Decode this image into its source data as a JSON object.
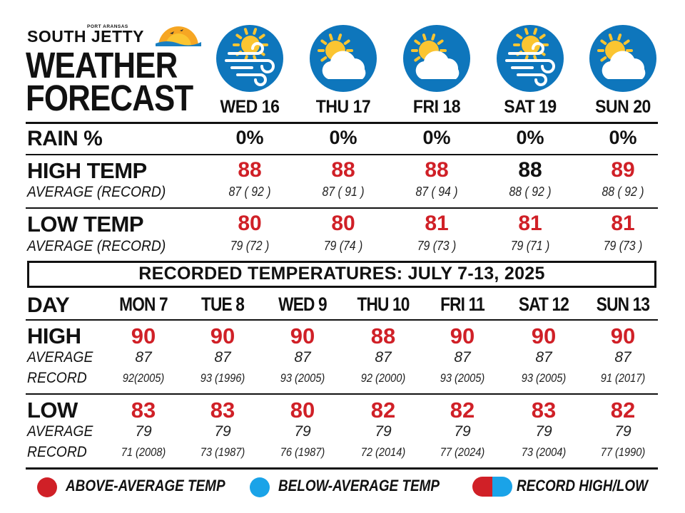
{
  "colors": {
    "above_average": "#d02027",
    "below_average": "#1aa3e8",
    "icon_background": "#0e76bc",
    "sun": "#fbc531",
    "cloud": "#ffffff"
  },
  "masthead": {
    "kicker": "PORT ARANSAS",
    "brand": "SOUTH JETTY",
    "title_line1": "WEATHER",
    "title_line2": "FORECAST"
  },
  "forecast": {
    "days": [
      {
        "label": "WED 16",
        "icon": "sun-wind-icon",
        "rain": "0%",
        "high": "88",
        "high_color": "red",
        "high_avg_rec": "87 ( 92 )",
        "low": "80",
        "low_color": "red",
        "low_avg_rec": "79 (72 )"
      },
      {
        "label": "THU 17",
        "icon": "partly-cloudy-icon",
        "rain": "0%",
        "high": "88",
        "high_color": "red",
        "high_avg_rec": "87 ( 91 )",
        "low": "80",
        "low_color": "red",
        "low_avg_rec": "79 (74 )"
      },
      {
        "label": "FRI 18",
        "icon": "partly-cloudy-icon",
        "rain": "0%",
        "high": "88",
        "high_color": "red",
        "high_avg_rec": "87 ( 94 )",
        "low": "81",
        "low_color": "red",
        "low_avg_rec": "79 (73 )"
      },
      {
        "label": "SAT 19",
        "icon": "sun-wind-icon",
        "rain": "0%",
        "high": "88",
        "high_color": "black",
        "high_avg_rec": "88 ( 92 )",
        "low": "81",
        "low_color": "red",
        "low_avg_rec": "79 (71 )"
      },
      {
        "label": "SUN 20",
        "icon": "partly-cloudy-icon",
        "rain": "0%",
        "high": "89",
        "high_color": "red",
        "high_avg_rec": "88 ( 92 )",
        "low": "81",
        "low_color": "red",
        "low_avg_rec": "79 (73 )"
      }
    ],
    "labels": {
      "rain": "RAIN %",
      "high": "HIGH TEMP",
      "low": "LOW TEMP",
      "avg_record": "AVERAGE (RECORD)"
    }
  },
  "recorded": {
    "title": "RECORDED TEMPERATURES: JULY 7-13, 2025",
    "labels": {
      "day": "DAY",
      "high": "HIGH",
      "low": "LOW",
      "average": "AVERAGE",
      "record": "RECORD"
    },
    "days": [
      {
        "label": "MON 7",
        "high": "90",
        "high_avg": "87",
        "high_rec": "92(2005)",
        "low": "83",
        "low_avg": "79",
        "low_rec": "71 (2008)"
      },
      {
        "label": "TUE 8",
        "high": "90",
        "high_avg": "87",
        "high_rec": "93 (1996)",
        "low": "83",
        "low_avg": "79",
        "low_rec": "73 (1987)"
      },
      {
        "label": "WED 9",
        "high": "90",
        "high_avg": "87",
        "high_rec": "93 (2005)",
        "low": "80",
        "low_avg": "79",
        "low_rec": "76 (1987)"
      },
      {
        "label": "THU 10",
        "high": "88",
        "high_avg": "87",
        "high_rec": "92 (2000)",
        "low": "82",
        "low_avg": "79",
        "low_rec": "72 (2014)"
      },
      {
        "label": "FRI 11",
        "high": "90",
        "high_avg": "87",
        "high_rec": "93 (2005)",
        "low": "82",
        "low_avg": "79",
        "low_rec": "77 (2024)"
      },
      {
        "label": "SAT 12",
        "high": "90",
        "high_avg": "87",
        "high_rec": "93 (2005)",
        "low": "83",
        "low_avg": "79",
        "low_rec": "73 (2004)"
      },
      {
        "label": "SUN 13",
        "high": "90",
        "high_avg": "87",
        "high_rec": "91 (2017)",
        "low": "82",
        "low_avg": "79",
        "low_rec": "77 (1990)"
      }
    ]
  },
  "legend": {
    "above": "ABOVE-AVERAGE TEMP",
    "below": "BELOW-AVERAGE TEMP",
    "record": "RECORD HIGH/LOW"
  }
}
